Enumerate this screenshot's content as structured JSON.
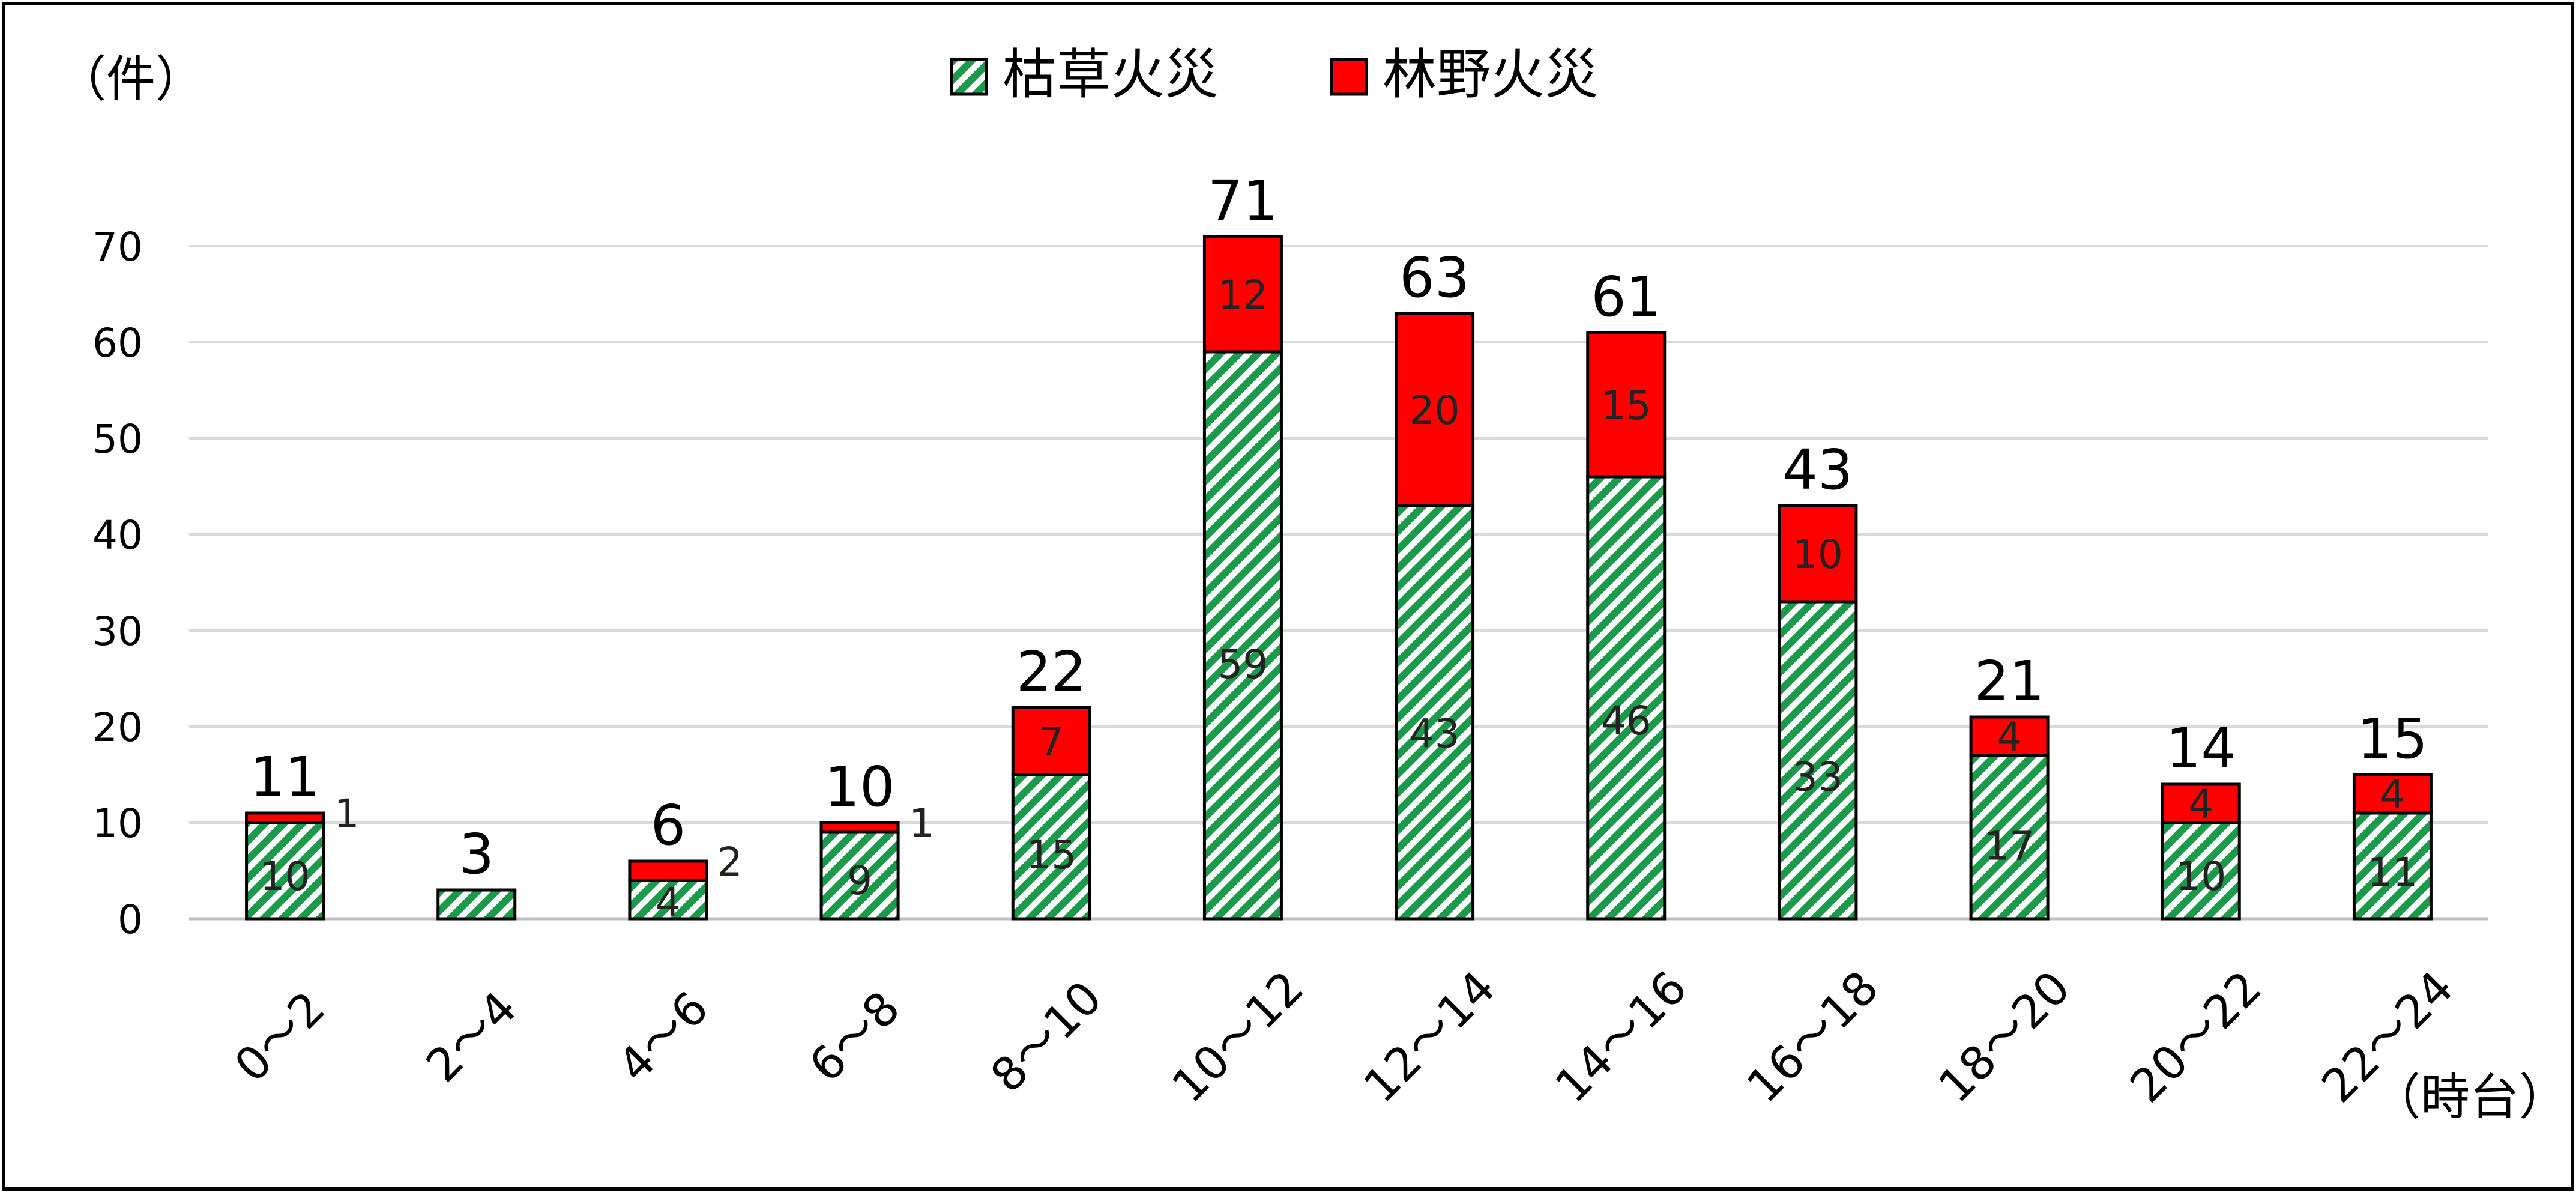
{
  "chart_data": {
    "type": "bar",
    "stacked": true,
    "y_unit_label": "（件）",
    "x_unit_label": "（時台）",
    "categories": [
      "0～2",
      "2～4",
      "4～6",
      "6～8",
      "8～10",
      "10～12",
      "12～14",
      "14～16",
      "16～18",
      "18～20",
      "20～22",
      "22～24"
    ],
    "series": [
      {
        "name": "枯草火災",
        "color": "#1a9a4a",
        "pattern": "diagonal-stripe",
        "values": [
          10,
          3,
          4,
          9,
          15,
          59,
          43,
          46,
          33,
          17,
          10,
          11
        ],
        "labels": [
          "10",
          "",
          "4",
          "9",
          "15",
          "59",
          "43",
          "46",
          "33",
          "17",
          "10",
          "11"
        ]
      },
      {
        "name": "林野火災",
        "color": "#ff0000",
        "pattern": "solid",
        "values": [
          1,
          0,
          2,
          1,
          7,
          12,
          20,
          15,
          10,
          4,
          4,
          4
        ],
        "labels": [
          "1",
          "",
          "2",
          "1",
          "7",
          "12",
          "20",
          "15",
          "10",
          "4",
          "4",
          "4"
        ]
      }
    ],
    "totals": [
      11,
      3,
      6,
      10,
      22,
      71,
      63,
      61,
      43,
      21,
      14,
      15
    ],
    "ylim": [
      0,
      70
    ],
    "yticks": [
      0,
      10,
      20,
      30,
      40,
      50,
      60,
      70
    ],
    "grid": true,
    "legend_position": "top-center"
  }
}
